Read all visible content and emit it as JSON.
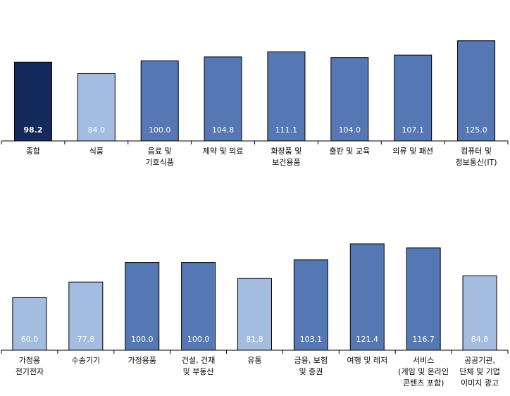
{
  "colors": {
    "dark": "#142A5C",
    "medium": "#5578B5",
    "light": "#A3BCDF",
    "axis": "#000000"
  },
  "chart_data": [
    {
      "type": "bar",
      "categories": [
        [
          "종합"
        ],
        [
          "식품"
        ],
        [
          "음료 및",
          "기호식품"
        ],
        [
          "제약 및 의료"
        ],
        [
          "화장품 및",
          "보건용품"
        ],
        [
          "출판 및 교육"
        ],
        [
          "의류 및 패션"
        ],
        [
          "컴퓨터 및",
          "정보통신(IT)"
        ]
      ],
      "values": [
        98.2,
        84.0,
        100.0,
        104.8,
        111.1,
        104.0,
        107.1,
        125.0
      ],
      "value_labels": [
        "98.2",
        "84.0",
        "100.0",
        "104.8",
        "111.1",
        "104.0",
        "107.1",
        "125.0"
      ],
      "bar_colors": [
        "dark",
        "light",
        "medium",
        "medium",
        "medium",
        "medium",
        "medium",
        "medium"
      ]
    },
    {
      "type": "bar",
      "categories": [
        [
          "가정용",
          "전기전자"
        ],
        [
          "수송기기"
        ],
        [
          "가정용품"
        ],
        [
          "건설, 건재",
          "및 부동산"
        ],
        [
          "유통"
        ],
        [
          "금융, 보험",
          "및 증권"
        ],
        [
          "여행 및 레저"
        ],
        [
          "서비스",
          "(게임 및 온라인",
          "콘텐츠 포함)"
        ],
        [
          "공공기관,",
          "단체 및 기업",
          "이미지 광고"
        ]
      ],
      "values": [
        60.0,
        77.8,
        100.0,
        100.0,
        81.8,
        103.1,
        121.4,
        116.7,
        84.8
      ],
      "value_labels": [
        "60.0",
        "77.8",
        "100.0",
        "100.0",
        "81.8",
        "103.1",
        "121.4",
        "116.7",
        "84.8"
      ],
      "bar_colors": [
        "light",
        "light",
        "medium",
        "medium",
        "light",
        "medium",
        "medium",
        "medium",
        "light"
      ]
    }
  ]
}
